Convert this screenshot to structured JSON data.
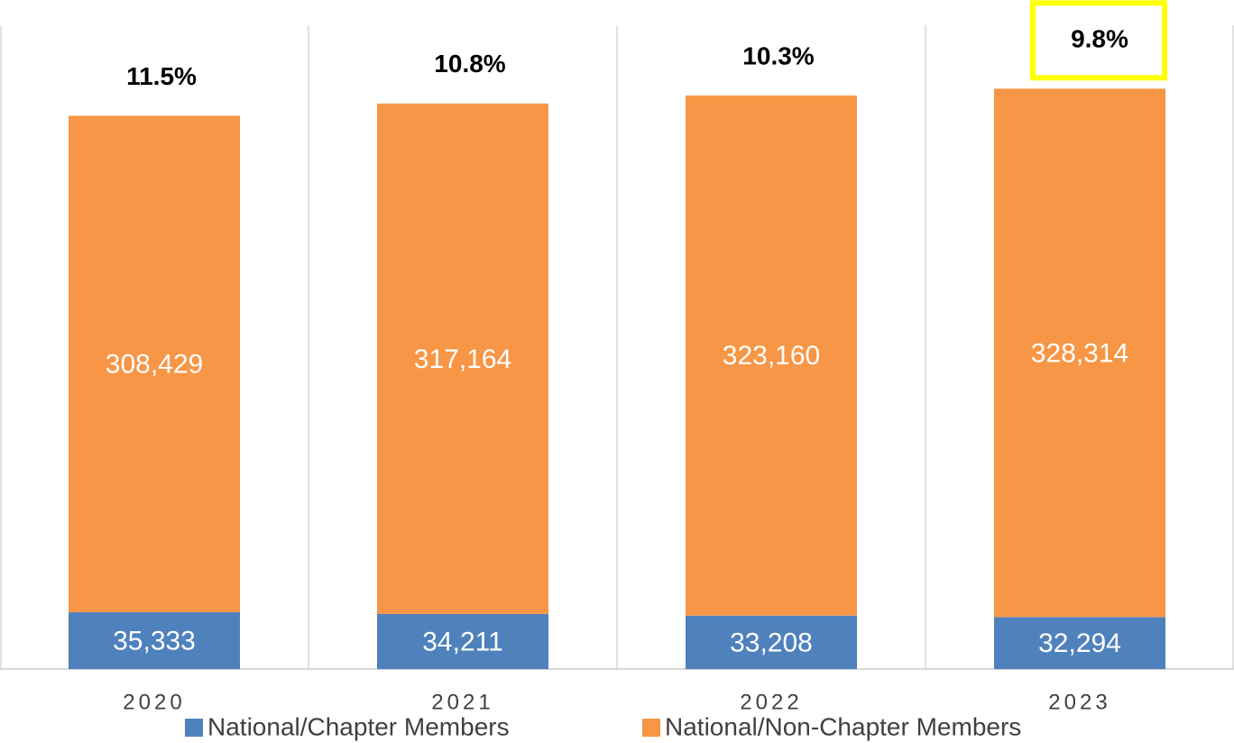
{
  "chart_data": {
    "type": "stacked_bar",
    "categories": [
      "2020",
      "2021",
      "2022",
      "2023"
    ],
    "series": [
      {
        "name": "National/Chapter Members",
        "color": "#4f81bd",
        "values": [
          35333,
          34211,
          33208,
          32294
        ],
        "value_labels": [
          "35,333",
          "34,211",
          "33,208",
          "32,294"
        ]
      },
      {
        "name": "National/Non-Chapter Members",
        "color": "#f79646",
        "values": [
          308429,
          317164,
          323160,
          328314
        ],
        "value_labels": [
          "308,429",
          "317,164",
          "323,160",
          "328,314"
        ]
      }
    ],
    "annotations": [
      "11.5%",
      "10.8%",
      "10.3%",
      "9.8%"
    ],
    "highlight": 3,
    "highlight_color": "#ffff00",
    "ylim": [
      0,
      400000
    ]
  }
}
